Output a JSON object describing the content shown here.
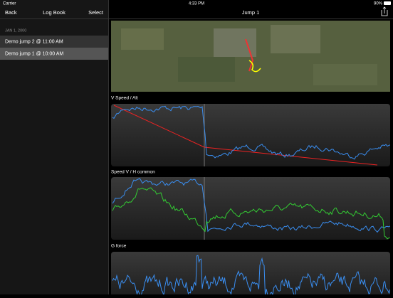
{
  "status_bar": {
    "carrier": "Carrier",
    "time": "4:33 PM",
    "battery": "90%"
  },
  "sidebar": {
    "back": "Back",
    "title": "Log Book",
    "select": "Select",
    "section_header": "JAN 1, 2000",
    "items": [
      "Demo jump 2 @ 11:00 AM",
      "Demo jump 1 @ 10:00 AM"
    ]
  },
  "detail": {
    "title": "Jump 1",
    "panels": [
      "V Speed / Alt",
      "Speed V / H common",
      "G force"
    ]
  }
}
